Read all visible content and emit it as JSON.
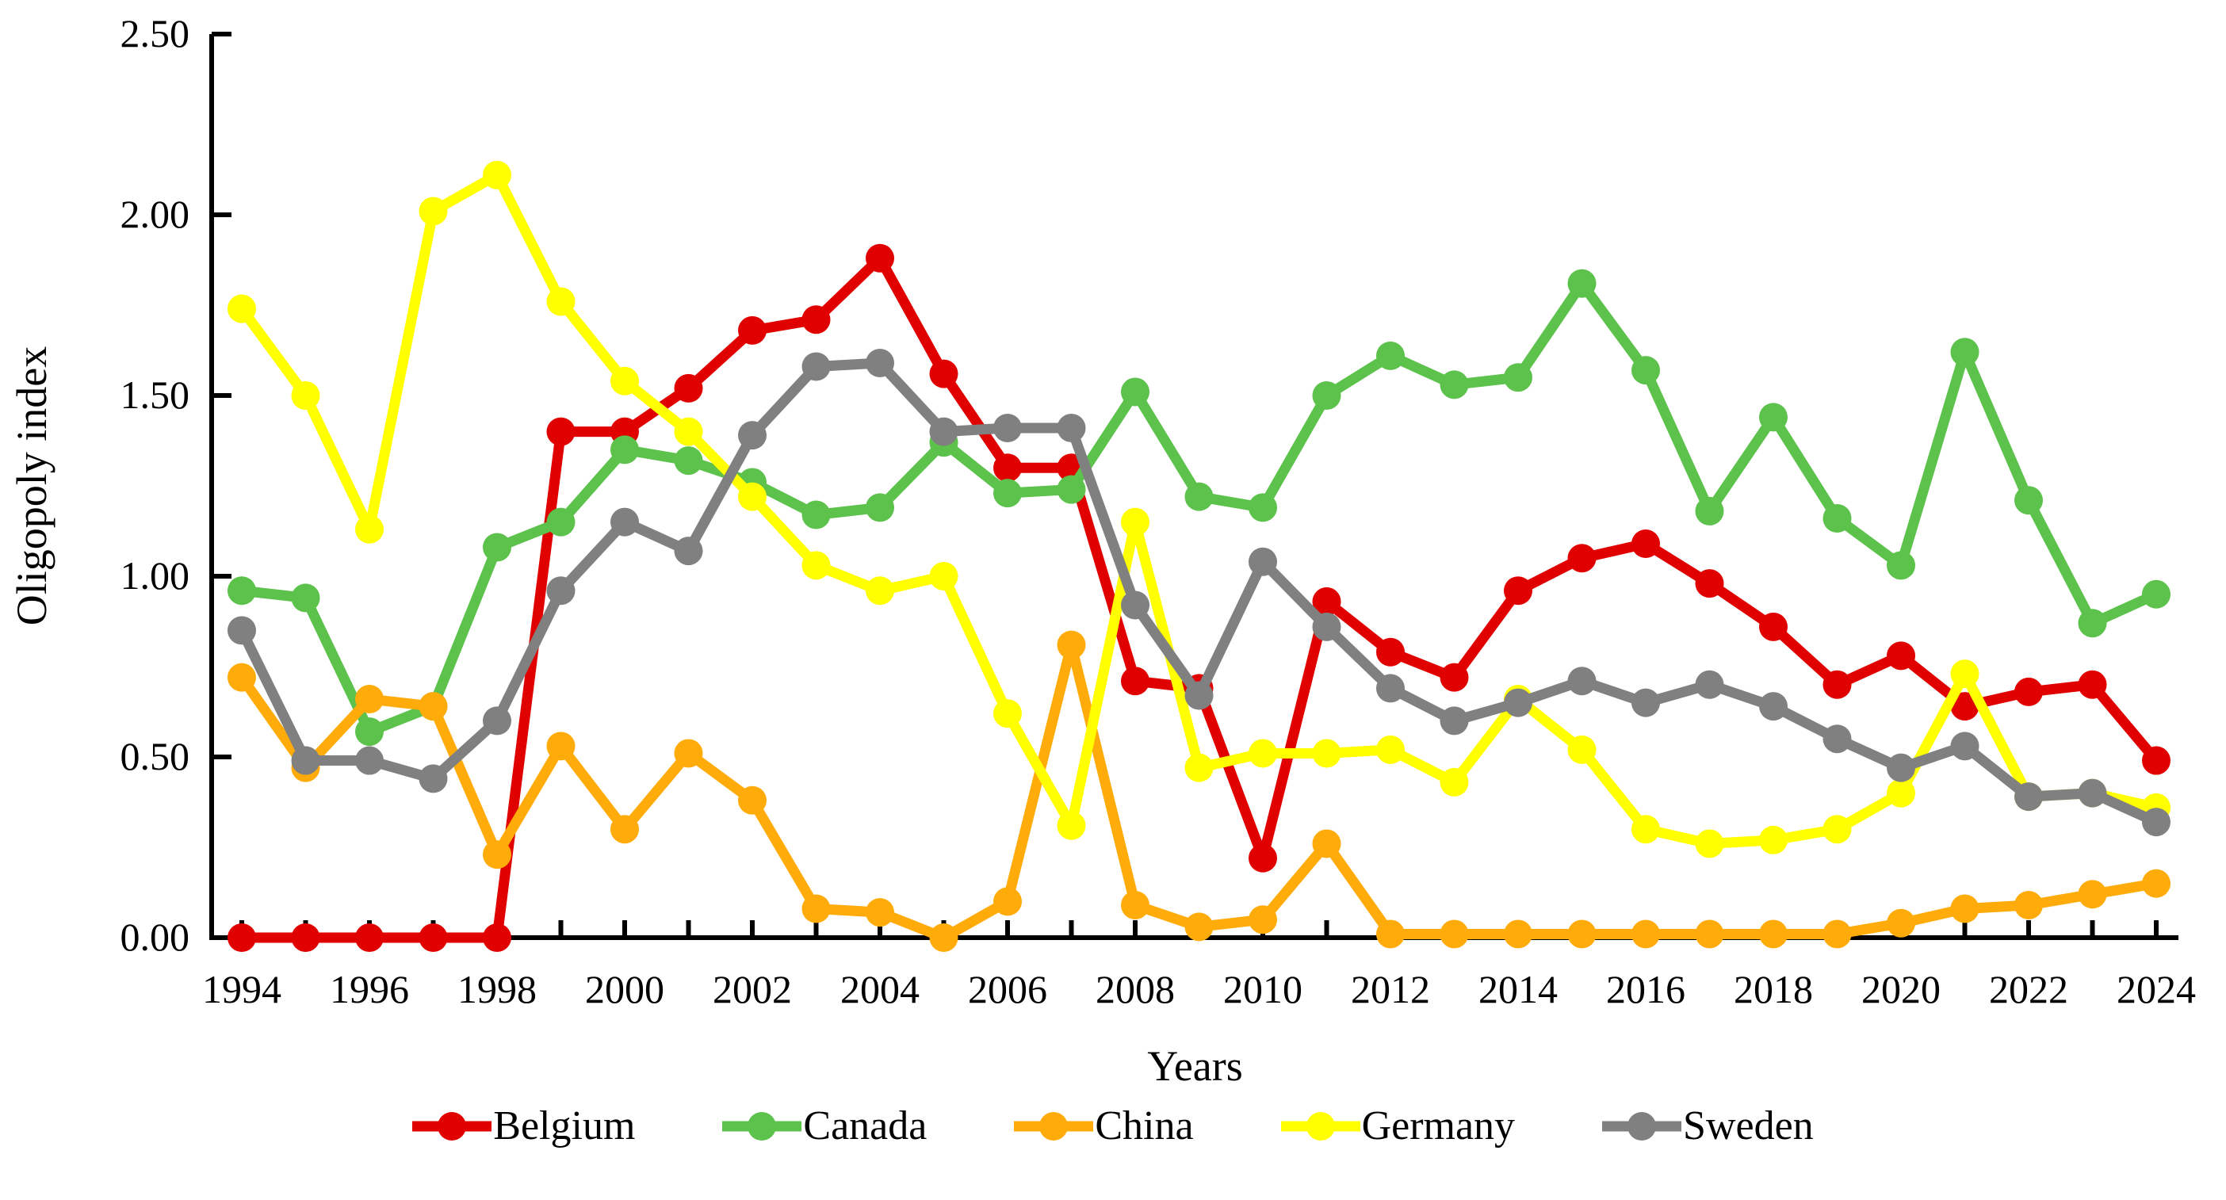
{
  "figure": {
    "background": "#ffffff",
    "axis_color": "#000000",
    "text_color": "#000000"
  },
  "chart_data": {
    "type": "line",
    "title": "",
    "xlabel": "Years",
    "ylabel": "Oligopoly index",
    "grid": false,
    "legend_position": "bottom",
    "ylim": [
      0.0,
      2.5
    ],
    "y_ticks": [
      0.0,
      0.5,
      1.0,
      1.5,
      2.0,
      2.5
    ],
    "y_tick_labels": [
      "0.00",
      "0.50",
      "1.00",
      "1.50",
      "2.00",
      "2.50"
    ],
    "x": [
      1994,
      1995,
      1996,
      1997,
      1998,
      1999,
      2000,
      2001,
      2002,
      2003,
      2004,
      2005,
      2006,
      2007,
      2008,
      2009,
      2010,
      2011,
      2012,
      2013,
      2014,
      2015,
      2016,
      2017,
      2018,
      2019,
      2020,
      2021,
      2022,
      2023,
      2024
    ],
    "x_tick_labels": [
      "1994",
      "1996",
      "1998",
      "2000",
      "2002",
      "2004",
      "2006",
      "2008",
      "2010",
      "2012",
      "2014",
      "2016",
      "2018",
      "2020",
      "2022",
      "2024"
    ],
    "series": [
      {
        "name": "Belgium",
        "color": "#e00000",
        "values": [
          0.0,
          0.0,
          0.0,
          0.0,
          0.0,
          1.4,
          1.4,
          1.52,
          1.68,
          1.71,
          1.88,
          1.56,
          1.3,
          1.3,
          0.71,
          0.69,
          0.22,
          0.93,
          0.79,
          0.72,
          0.96,
          1.05,
          1.09,
          0.98,
          0.86,
          0.7,
          0.78,
          0.64,
          0.68,
          0.7,
          0.49
        ]
      },
      {
        "name": "Canada",
        "color": "#5cc24c",
        "values": [
          0.96,
          0.94,
          0.57,
          0.64,
          1.08,
          1.15,
          1.35,
          1.32,
          1.26,
          1.17,
          1.19,
          1.37,
          1.23,
          1.24,
          1.51,
          1.22,
          1.19,
          1.5,
          1.61,
          1.53,
          1.55,
          1.81,
          1.57,
          1.18,
          1.44,
          1.16,
          1.03,
          1.62,
          1.21,
          0.87,
          0.95
        ]
      },
      {
        "name": "China",
        "color": "#ffab0a",
        "values": [
          0.72,
          0.47,
          0.66,
          0.64,
          0.23,
          0.53,
          0.3,
          0.51,
          0.38,
          0.08,
          0.07,
          0.0,
          0.1,
          0.81,
          0.09,
          0.03,
          0.05,
          0.26,
          0.01,
          0.01,
          0.01,
          0.01,
          0.01,
          0.01,
          0.01,
          0.01,
          0.04,
          0.08,
          0.09,
          0.12,
          0.15
        ]
      },
      {
        "name": "Germany",
        "color": "#ffff00",
        "values": [
          1.74,
          1.5,
          1.13,
          2.01,
          2.11,
          1.76,
          1.54,
          1.4,
          1.22,
          1.03,
          0.96,
          1.0,
          0.62,
          0.31,
          1.15,
          0.47,
          0.51,
          0.51,
          0.52,
          0.43,
          0.66,
          0.52,
          0.3,
          0.26,
          0.27,
          0.3,
          0.4,
          0.73,
          0.39,
          0.4,
          0.36
        ]
      },
      {
        "name": "Sweden",
        "color": "#808080",
        "values": [
          0.85,
          0.49,
          0.49,
          0.44,
          0.6,
          0.96,
          1.15,
          1.07,
          1.39,
          1.58,
          1.59,
          1.4,
          1.41,
          1.41,
          0.92,
          0.67,
          1.04,
          0.86,
          0.69,
          0.6,
          0.65,
          0.71,
          0.65,
          0.7,
          0.64,
          0.55,
          0.47,
          0.53,
          0.39,
          0.4,
          0.32
        ]
      }
    ]
  }
}
